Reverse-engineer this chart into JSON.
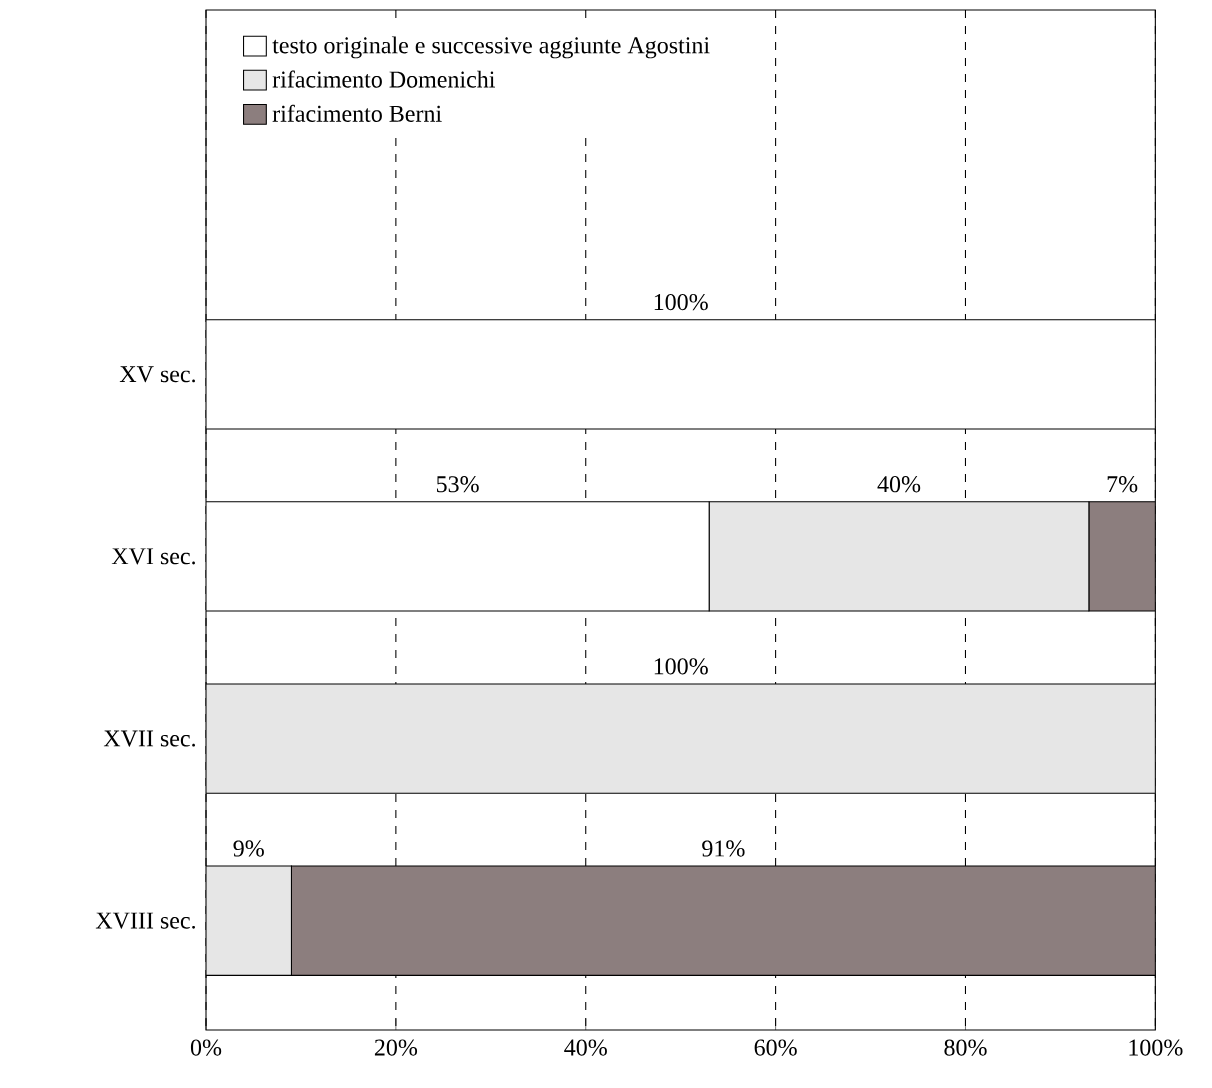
{
  "chart_data": {
    "type": "bar",
    "orientation": "horizontal",
    "stacked": true,
    "categories": [
      "XV sec.",
      "XVI sec.",
      "XVII sec.",
      "XVIII sec."
    ],
    "series": [
      {
        "name": "testo originale e successive aggiunte Agostini",
        "color": "#ffffff",
        "values": [
          100,
          53,
          0,
          0
        ],
        "value_labels": [
          "100%",
          "53%",
          null,
          null
        ]
      },
      {
        "name": "rifacimento Domenichi",
        "color": "#e6e6e6",
        "values": [
          0,
          40,
          100,
          9
        ],
        "value_labels": [
          null,
          "40%",
          "100%",
          "9%"
        ]
      },
      {
        "name": "rifacimento Berni",
        "color": "#8c7e7e",
        "values": [
          0,
          7,
          0,
          91
        ],
        "value_labels": [
          null,
          "7%",
          null,
          "91%"
        ]
      }
    ],
    "xlim": [
      0,
      100
    ],
    "xticks": [
      {
        "value": 0,
        "label": "0%"
      },
      {
        "value": 20,
        "label": "20%"
      },
      {
        "value": 40,
        "label": "40%"
      },
      {
        "value": 60,
        "label": "60%"
      },
      {
        "value": 80,
        "label": "80%"
      },
      {
        "value": 100,
        "label": "100%"
      }
    ],
    "grid": "x",
    "legend": "top"
  }
}
